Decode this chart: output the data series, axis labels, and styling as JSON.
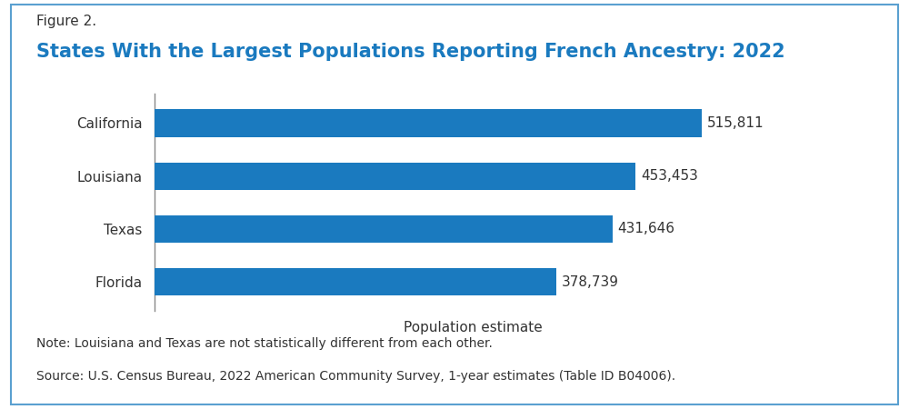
{
  "title_label": "Figure 2.",
  "title_main": "States With the Largest Populations Reporting French Ancestry: 2022",
  "categories": [
    "California",
    "Louisiana",
    "Texas",
    "Florida"
  ],
  "values": [
    515811,
    453453,
    431646,
    378739
  ],
  "value_labels": [
    "515,811",
    "453,453",
    "431,646",
    "378,739"
  ],
  "bar_color": "#1a7abf",
  "xlabel": "Population estimate",
  "xlim": [
    0,
    600000
  ],
  "note_line1": "Note: Louisiana and Texas are not statistically different from each other.",
  "note_line2": "Source: U.S. Census Bureau, 2022 American Community Survey, 1-year estimates (Table ID B04006).",
  "title_label_color": "#333333",
  "title_main_color": "#1a7abf",
  "border_color": "#5aa0d0",
  "background_color": "#ffffff",
  "bar_height": 0.52,
  "label_fontsize": 11,
  "title_label_fontsize": 11,
  "title_main_fontsize": 15,
  "xlabel_fontsize": 11,
  "note_fontsize": 10,
  "value_label_fontsize": 11
}
